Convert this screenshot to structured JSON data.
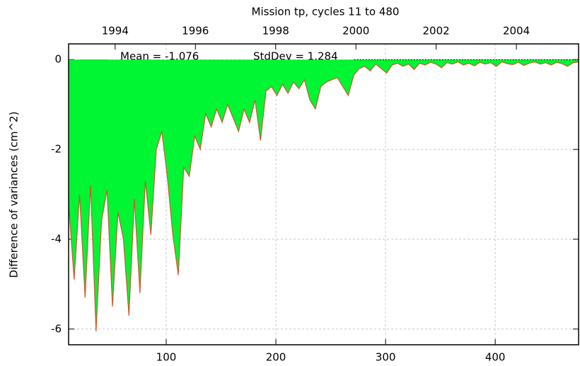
{
  "chart_data": {
    "type": "area",
    "title": "Mission tp, cycles 11 to 480",
    "y_label": "Difference of variances (cm^2)",
    "x": [
      11,
      16,
      21,
      26,
      31,
      36,
      41,
      46,
      51,
      56,
      61,
      66,
      71,
      76,
      81,
      86,
      91,
      96,
      101,
      106,
      111,
      116,
      121,
      126,
      131,
      136,
      141,
      146,
      151,
      156,
      161,
      166,
      171,
      176,
      181,
      186,
      191,
      196,
      201,
      206,
      211,
      216,
      221,
      226,
      231,
      236,
      241,
      246,
      251,
      256,
      261,
      266,
      271,
      276,
      281,
      286,
      291,
      296,
      301,
      306,
      311,
      316,
      321,
      326,
      331,
      336,
      341,
      346,
      351,
      356,
      361,
      366,
      371,
      376,
      381,
      386,
      391,
      396,
      401,
      406,
      411,
      416,
      421,
      426,
      431,
      436,
      441,
      446,
      451,
      456,
      461,
      466,
      471,
      476
    ],
    "series": [
      {
        "name": "Mean = -1.076",
        "color": "#d0582c",
        "fill": "#00f532",
        "values": [
          -3.2,
          -4.9,
          -3.0,
          -5.3,
          -2.8,
          -6.05,
          -3.6,
          -2.9,
          -5.5,
          -3.4,
          -4.0,
          -5.7,
          -3.1,
          -5.2,
          -2.7,
          -3.9,
          -2.0,
          -1.6,
          -2.6,
          -3.9,
          -4.8,
          -2.4,
          -2.6,
          -1.7,
          -2.0,
          -1.2,
          -1.5,
          -1.1,
          -1.4,
          -1.0,
          -1.3,
          -1.6,
          -1.1,
          -1.4,
          -0.9,
          -1.8,
          -0.7,
          -0.6,
          -0.8,
          -0.55,
          -0.75,
          -0.5,
          -0.65,
          -0.45,
          -0.9,
          -1.1,
          -0.6,
          -0.5,
          -0.45,
          -0.4,
          -0.6,
          -0.8,
          -0.35,
          -0.2,
          -0.15,
          -0.25,
          -0.1,
          -0.2,
          -0.3,
          -0.12,
          -0.08,
          -0.15,
          -0.1,
          -0.22,
          -0.08,
          -0.12,
          -0.06,
          -0.1,
          -0.18,
          -0.07,
          -0.1,
          -0.05,
          -0.12,
          -0.08,
          -0.14,
          -0.06,
          -0.1,
          -0.07,
          -0.15,
          -0.05,
          -0.09,
          -0.11,
          -0.06,
          -0.13,
          -0.08,
          -0.05,
          -0.1,
          -0.07,
          -0.12,
          -0.06,
          -0.09,
          -0.15,
          -0.07,
          -0.05
        ]
      }
    ],
    "annotation": "StdDev = 1.284",
    "xlim": [
      11,
      476
    ],
    "xticks": [
      100,
      200,
      300,
      400
    ],
    "ylim": [
      -6.35,
      0.35
    ],
    "yticks": [
      -6,
      -4,
      -2,
      0
    ],
    "x2lim": [
      1992.84,
      2005.55
    ],
    "x2ticks": [
      1994,
      1996,
      1998,
      2000,
      2002,
      2004
    ],
    "grid": true
  }
}
